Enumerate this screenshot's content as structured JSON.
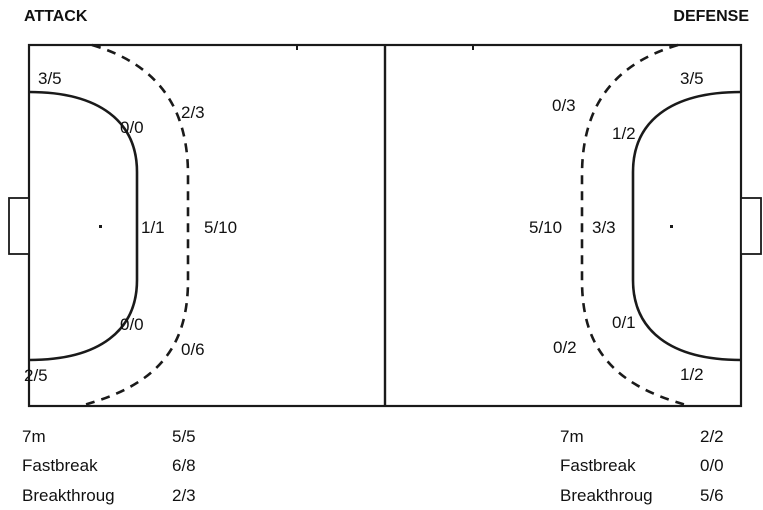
{
  "attack": {
    "heading": "ATTACK",
    "zones": {
      "left_wing_top": "3/5",
      "inner_upper": "0/0",
      "outer_upper": "2/3",
      "inner_center": "1/1",
      "outer_center": "5/10",
      "inner_lower": "0/0",
      "outer_lower": "0/6",
      "left_wing_bottom": "2/5"
    },
    "stats": [
      {
        "label": "7m",
        "value": "5/5"
      },
      {
        "label": "Fastbreak",
        "value": "6/8"
      },
      {
        "label": "Breakthroug",
        "value": "2/3"
      }
    ]
  },
  "defense": {
    "heading": "DEFENSE",
    "zones": {
      "outer_upper": "0/3",
      "inner_upper": "1/2",
      "right_wing_top": "3/5",
      "outer_center": "5/10",
      "inner_center": "3/3",
      "inner_lower": "0/1",
      "outer_lower": "0/2",
      "right_wing_bottom": "1/2"
    },
    "stats": [
      {
        "label": "7m",
        "value": "2/2"
      },
      {
        "label": "Fastbreak",
        "value": "0/0"
      },
      {
        "label": "Breakthroug",
        "value": "5/6"
      }
    ]
  }
}
